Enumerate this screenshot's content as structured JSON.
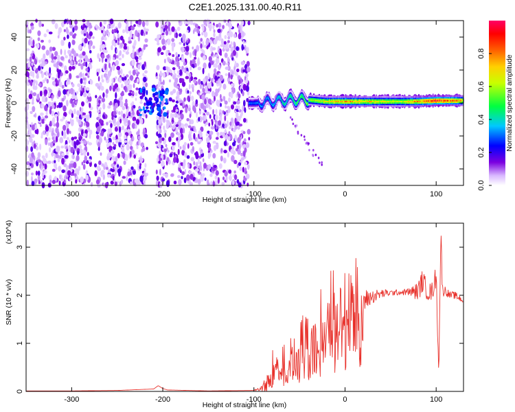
{
  "title": "C2E1.2025.131.00.40.R11",
  "chart_data": [
    {
      "type": "heatmap",
      "xlabel": "Height of straight line (km)",
      "ylabel": "Frequency (Hz)",
      "xlim": [
        -350,
        130
      ],
      "ylim": [
        -50,
        50
      ],
      "xticks": [
        "-300",
        "-200",
        "-100",
        "0",
        "100"
      ],
      "yticks": [
        "-40",
        "-20",
        "0",
        "20",
        "40"
      ],
      "colorbar": {
        "label": "Normalized spectral amplitude",
        "range": [
          0,
          1
        ],
        "ticks": [
          "0.0",
          "0.2",
          "0.4",
          "0.6",
          "0.8"
        ],
        "colormap": [
          "#ffffff",
          "#7b00e0",
          "#0000ff",
          "#00c8ff",
          "#00ff00",
          "#ffff00",
          "#ff8000",
          "#ff0000",
          "#ff0066"
        ]
      },
      "ridge": {
        "description_points_x": [
          -100,
          -80,
          -60,
          -40,
          -20,
          0,
          20,
          40,
          60,
          80,
          100,
          120,
          130
        ],
        "frequency": [
          0,
          1,
          2,
          2,
          1,
          1,
          1,
          1,
          1,
          1,
          1.5,
          1.5,
          1.5
        ],
        "amplitude": [
          0.3,
          0.35,
          0.45,
          0.55,
          0.65,
          0.75,
          0.7,
          0.65,
          0.6,
          0.75,
          0.9,
          0.8,
          0.7
        ]
      }
    },
    {
      "type": "line",
      "xlabel": "Height of straight line (km)",
      "ylabel": "SNR (10 * v/v)",
      "scale_label": "(x10^4)",
      "xlim": [
        -350,
        130
      ],
      "ylim": [
        0,
        3.5
      ],
      "xticks": [
        "-300",
        "-200",
        "-100",
        "0",
        "100"
      ],
      "yticks": [
        "0",
        "1",
        "2",
        "3"
      ],
      "series": [
        {
          "color": "#e8312b",
          "x": [
            -350,
            -300,
            -250,
            -210,
            -205,
            -200,
            -195,
            -150,
            -100,
            -90,
            -80,
            -75,
            -70,
            -60,
            -50,
            -40,
            -30,
            -20,
            -10,
            0,
            10,
            20,
            30,
            40,
            50,
            60,
            70,
            80,
            85,
            90,
            95,
            100,
            103,
            105,
            107,
            110,
            115,
            120,
            130
          ],
          "y": [
            0.01,
            0.01,
            0.02,
            0.05,
            0.12,
            0.06,
            0.03,
            0.01,
            0.02,
            0.08,
            0.3,
            0.5,
            0.4,
            0.5,
            0.6,
            0.8,
            1.0,
            1.2,
            1.4,
            1.6,
            1.75,
            1.88,
            1.97,
            2.03,
            2.05,
            2.06,
            2.07,
            2.08,
            2.3,
            2.1,
            2.05,
            2.4,
            0.4,
            3.3,
            2.1,
            2.1,
            2.0,
            2.0,
            1.9
          ],
          "noise_amplitude": [
            0,
            0,
            0,
            0,
            0,
            0,
            0,
            0,
            0,
            0.1,
            0.35,
            0.4,
            0.5,
            0.55,
            0.6,
            0.6,
            0.6,
            0.55,
            0.5,
            0.45,
            0.35,
            0.25,
            0.15,
            0.1,
            0.06,
            0.06,
            0.08,
            0.2,
            0.25,
            0.2,
            0.2,
            0.25,
            0.2,
            0.3,
            0.15,
            0.1,
            0.08,
            0.08,
            0.08
          ]
        }
      ]
    }
  ]
}
